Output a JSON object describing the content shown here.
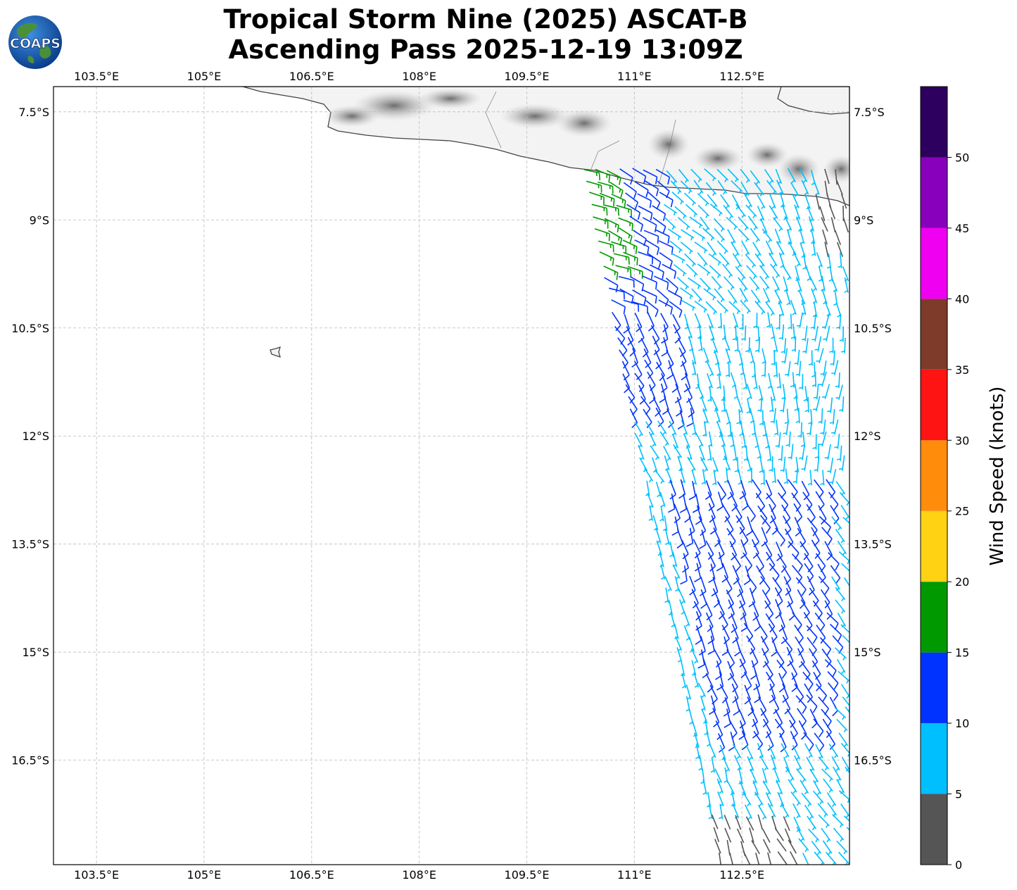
{
  "title": {
    "line1": "Tropical Storm Nine (2025) ASCAT-B",
    "line2": "Ascending Pass 2025-12-19 13:09Z"
  },
  "logo": {
    "text": "COAPS"
  },
  "map": {
    "lon_range": [
      102.9,
      114.0
    ],
    "lat_range": [
      -17.95,
      -7.15
    ],
    "lon_ticks": [
      "103.5°E",
      "105°E",
      "106.5°E",
      "108°E",
      "109.5°E",
      "111°E",
      "112.5°E"
    ],
    "lon_values": [
      103.5,
      105.0,
      106.5,
      108.0,
      109.5,
      111.0,
      112.5
    ],
    "lat_ticks": [
      "7.5°S",
      "9°S",
      "10.5°S",
      "12°S",
      "13.5°S",
      "15°S",
      "16.5°S"
    ],
    "lat_values": [
      -7.5,
      -9.0,
      -10.5,
      -12.0,
      -13.5,
      -15.0,
      -16.5
    ],
    "gridlines": true,
    "land_color": "#f4f4f4",
    "coast_color": "#444444"
  },
  "colorbar": {
    "label": "Wind Speed (knots)",
    "ticks": [
      "0",
      "5",
      "10",
      "15",
      "20",
      "25",
      "30",
      "35",
      "40",
      "45",
      "50"
    ],
    "bins": [
      {
        "min": 0,
        "max": 5,
        "color": "#555555"
      },
      {
        "min": 5,
        "max": 10,
        "color": "#00bfff"
      },
      {
        "min": 10,
        "max": 15,
        "color": "#0033ff"
      },
      {
        "min": 15,
        "max": 20,
        "color": "#009900"
      },
      {
        "min": 20,
        "max": 25,
        "color": "#ffd314"
      },
      {
        "min": 25,
        "max": 30,
        "color": "#ff8c0a"
      },
      {
        "min": 30,
        "max": 35,
        "color": "#ff1414"
      },
      {
        "min": 35,
        "max": 40,
        "color": "#7f3b2a"
      },
      {
        "min": 40,
        "max": 45,
        "color": "#f000f0"
      },
      {
        "min": 45,
        "max": 50,
        "color": "#8800bb"
      },
      {
        "min": 50,
        "max": 55,
        "color": "#2d0060"
      }
    ]
  },
  "swath": {
    "lat_top": -8.3,
    "lat_bottom": -17.9,
    "west_edge_lon_at_top": 110.3,
    "west_edge_lon_at_bottom": 112.2,
    "east_edge_lon": 113.95
  }
}
